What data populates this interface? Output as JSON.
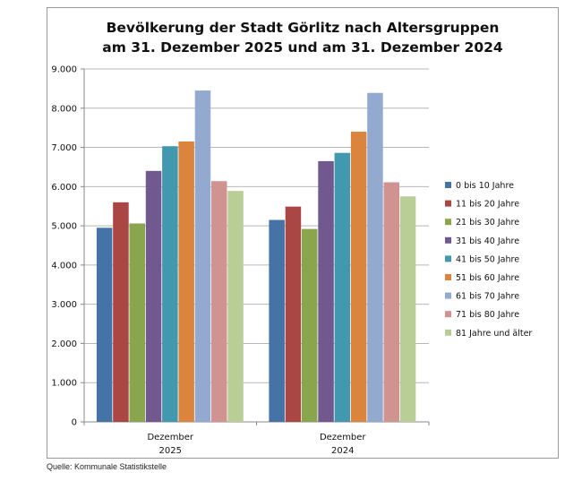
{
  "chart_data": {
    "type": "bar",
    "title": [
      "Bevölkerung der Stadt Görlitz nach Altersgruppen",
      "am 31. Dezember 2025 und am 31. Dezember 2024"
    ],
    "categories": [
      [
        "Dezember",
        "2025"
      ],
      [
        "Dezember",
        "2024"
      ]
    ],
    "ylim": [
      0,
      9000
    ],
    "yticks": [
      "0",
      "1.000",
      "2.000",
      "3.000",
      "4.000",
      "5.000",
      "6.000",
      "7.000",
      "8.000",
      "9.000"
    ],
    "grid": true,
    "legend_position": "right",
    "series": [
      {
        "name": "0 bis 10 Jahre",
        "color": "#4572a7",
        "values": [
          4950,
          5150
        ]
      },
      {
        "name": "11 bis 20 Jahre",
        "color": "#aa4643",
        "values": [
          5600,
          5490
        ]
      },
      {
        "name": "21 bis 30 Jahre",
        "color": "#89a54e",
        "values": [
          5060,
          4920
        ]
      },
      {
        "name": "31 bis 40 Jahre",
        "color": "#71588f",
        "values": [
          6400,
          6650
        ]
      },
      {
        "name": "41 bis 50 Jahre",
        "color": "#4198af",
        "values": [
          7030,
          6860
        ]
      },
      {
        "name": "51 bis 60 Jahre",
        "color": "#db843d",
        "values": [
          7150,
          7400
        ]
      },
      {
        "name": "61 bis 70 Jahre",
        "color": "#93a9cf",
        "values": [
          8450,
          8390
        ]
      },
      {
        "name": "71 bis 80 Jahre",
        "color": "#d19392",
        "values": [
          6140,
          6110
        ]
      },
      {
        "name": "81 Jahre und älter",
        "color": "#b9cd96",
        "values": [
          5890,
          5750
        ]
      }
    ]
  },
  "source": "Quelle: Kommunale Statistikstelle"
}
